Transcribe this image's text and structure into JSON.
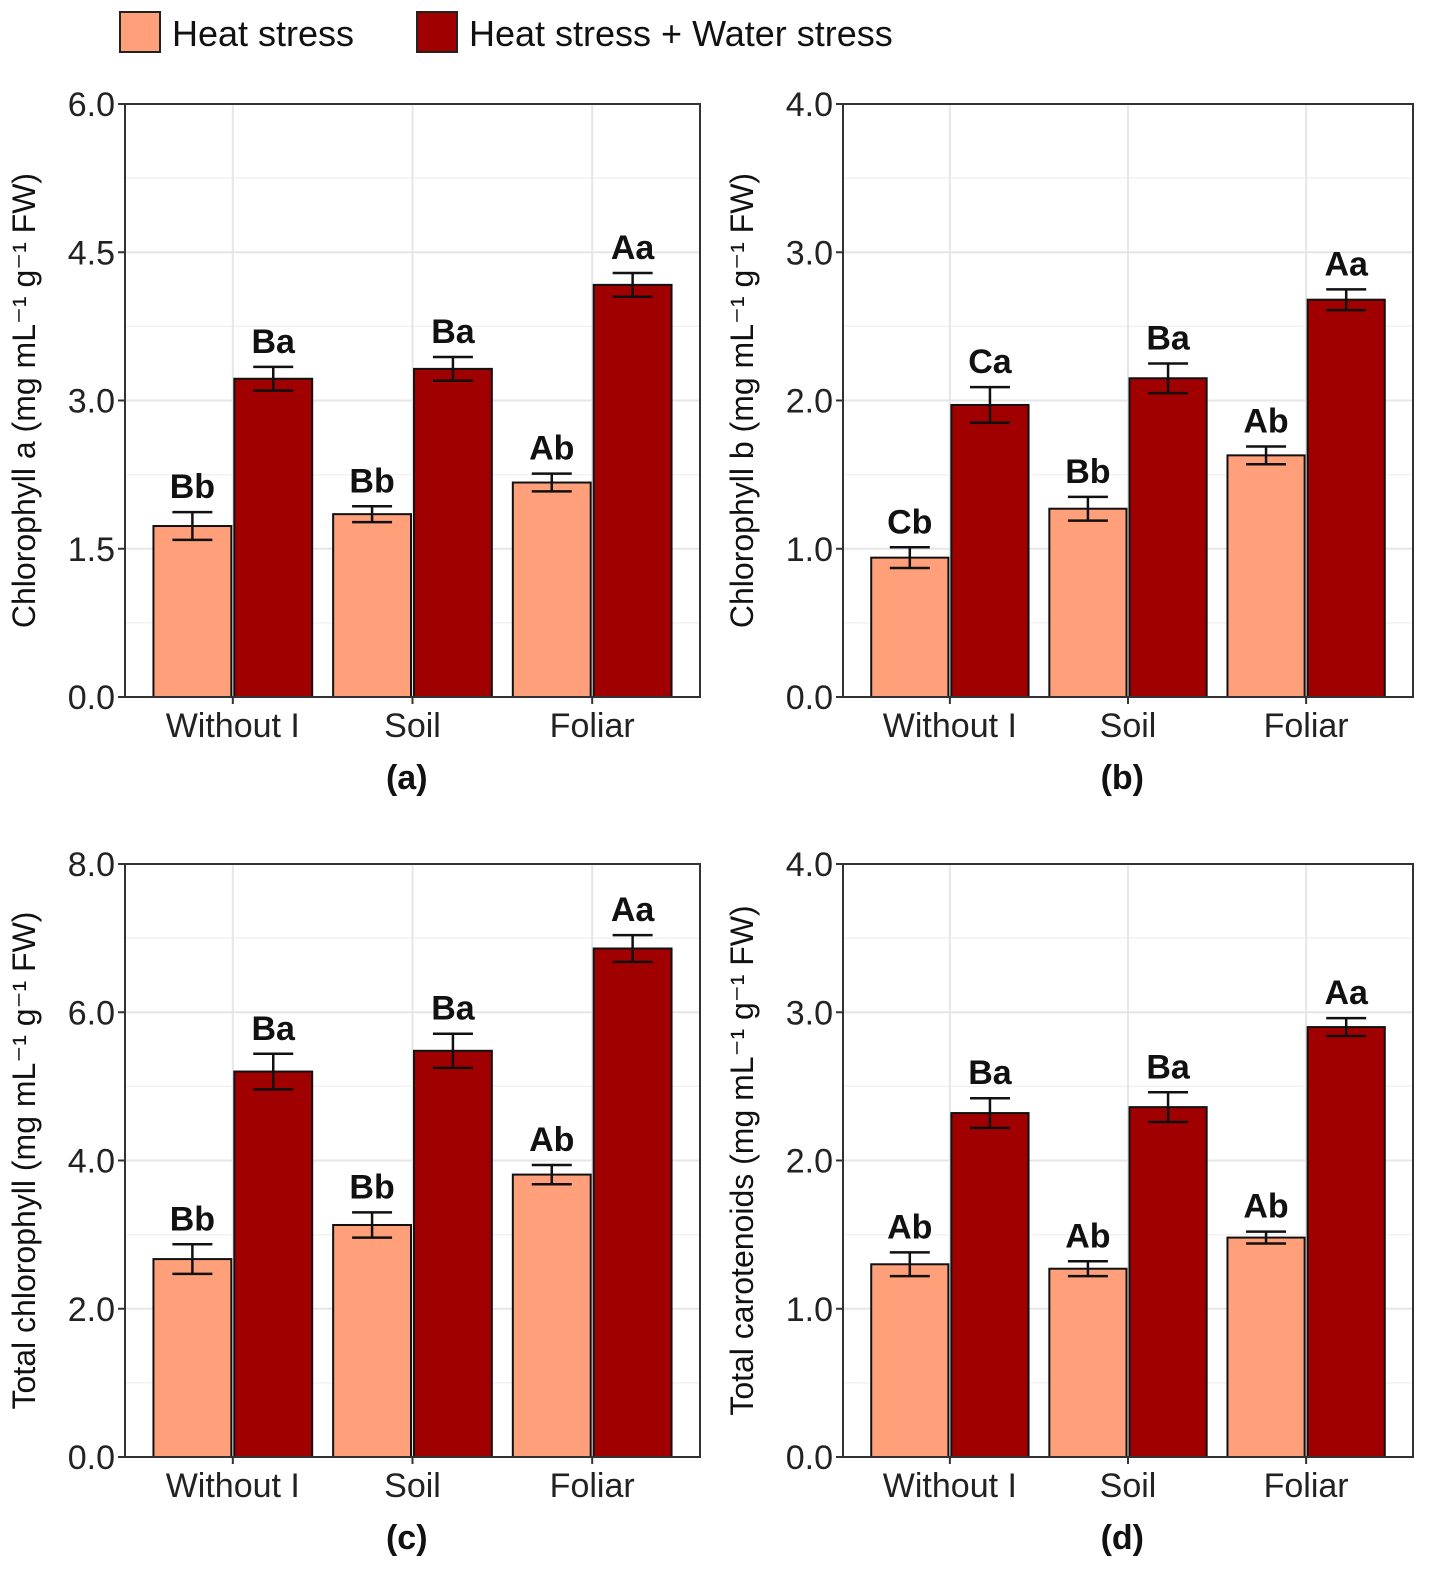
{
  "legend": [
    {
      "name": "Heat stress",
      "color": "#FFA07A"
    },
    {
      "name": "Heat stress + Water stress",
      "color": "#A00000"
    }
  ],
  "chart_data": [
    {
      "type": "bar",
      "panel": "(a)",
      "ylabel": "Chlorophyll a (mg mL⁻¹ g⁻¹ FW)",
      "ylim": [
        0,
        6
      ],
      "yticks": [
        "0.0",
        "1.5",
        "3.0",
        "4.5",
        "6.0"
      ],
      "ytick_values": [
        0,
        1.5,
        3,
        4.5,
        6
      ],
      "categories": [
        "Without I",
        "Soil",
        "Foliar"
      ],
      "series": [
        {
          "name": "Heat stress",
          "values": [
            1.73,
            1.85,
            2.17
          ],
          "errors": [
            0.14,
            0.08,
            0.09
          ],
          "letters": [
            "Bb",
            "Bb",
            "Ab"
          ]
        },
        {
          "name": "Heat stress + Water stress",
          "values": [
            3.22,
            3.32,
            4.17
          ],
          "errors": [
            0.12,
            0.12,
            0.12
          ],
          "letters": [
            "Ba",
            "Ba",
            "Aa"
          ]
        }
      ]
    },
    {
      "type": "bar",
      "panel": "(b)",
      "ylabel": "Chlorophyll b (mg mL⁻¹ g⁻¹ FW)",
      "ylim": [
        0,
        4
      ],
      "yticks": [
        "0.0",
        "1.0",
        "2.0",
        "3.0",
        "4.0"
      ],
      "ytick_values": [
        0,
        1,
        2,
        3,
        4
      ],
      "categories": [
        "Without I",
        "Soil",
        "Foliar"
      ],
      "series": [
        {
          "name": "Heat stress",
          "values": [
            0.94,
            1.27,
            1.63
          ],
          "errors": [
            0.07,
            0.08,
            0.06
          ],
          "letters": [
            "Cb",
            "Bb",
            "Ab"
          ]
        },
        {
          "name": "Heat stress + Water stress",
          "values": [
            1.97,
            2.15,
            2.68
          ],
          "errors": [
            0.12,
            0.1,
            0.07
          ],
          "letters": [
            "Ca",
            "Ba",
            "Aa"
          ]
        }
      ]
    },
    {
      "type": "bar",
      "panel": "(c)",
      "ylabel": "Total chlorophyll (mg mL⁻¹ g⁻¹ FW)",
      "ylim": [
        0,
        8
      ],
      "yticks": [
        "0.0",
        "2.0",
        "4.0",
        "6.0",
        "8.0"
      ],
      "ytick_values": [
        0,
        2,
        4,
        6,
        8
      ],
      "categories": [
        "Without I",
        "Soil",
        "Foliar"
      ],
      "series": [
        {
          "name": "Heat stress",
          "values": [
            2.67,
            3.13,
            3.81
          ],
          "errors": [
            0.2,
            0.17,
            0.13
          ],
          "letters": [
            "Bb",
            "Bb",
            "Ab"
          ]
        },
        {
          "name": "Heat stress + Water stress",
          "values": [
            5.2,
            5.48,
            6.86
          ],
          "errors": [
            0.24,
            0.23,
            0.18
          ],
          "letters": [
            "Ba",
            "Ba",
            "Aa"
          ]
        }
      ]
    },
    {
      "type": "bar",
      "panel": "(d)",
      "ylabel": "Total carotenoids (mg mL⁻¹ g⁻¹ FW)",
      "ylim": [
        0,
        4
      ],
      "yticks": [
        "0.0",
        "1.0",
        "2.0",
        "3.0",
        "4.0"
      ],
      "ytick_values": [
        0,
        1,
        2,
        3,
        4
      ],
      "categories": [
        "Without I",
        "Soil",
        "Foliar"
      ],
      "series": [
        {
          "name": "Heat stress",
          "values": [
            1.3,
            1.27,
            1.48
          ],
          "errors": [
            0.08,
            0.05,
            0.04
          ],
          "letters": [
            "Ab",
            "Ab",
            "Ab"
          ]
        },
        {
          "name": "Heat stress + Water stress",
          "values": [
            2.32,
            2.36,
            2.9
          ],
          "errors": [
            0.1,
            0.1,
            0.06
          ],
          "letters": [
            "Ba",
            "Ba",
            "Aa"
          ]
        }
      ]
    }
  ]
}
